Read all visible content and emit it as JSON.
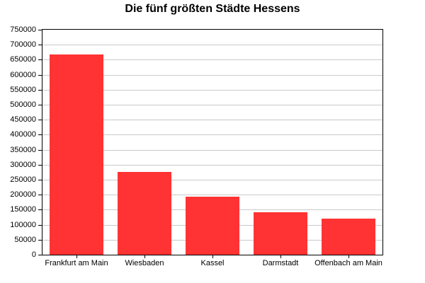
{
  "chart_data": {
    "type": "bar",
    "title": "Die fünf größten Städte Hessens",
    "categories": [
      "Frankfurt am Main",
      "Wiesbaden",
      "Kassel",
      "Darmstadt",
      "Offenbach am Main"
    ],
    "values": [
      668000,
      276000,
      193000,
      142000,
      120000
    ],
    "xlabel": "",
    "ylabel": "",
    "ylim": [
      0,
      750000
    ],
    "ytick_step": 50000,
    "ytick_labels": [
      "0",
      "50000",
      "100000",
      "150000",
      "200000",
      "250000",
      "300000",
      "350000",
      "400000",
      "450000",
      "500000",
      "550000",
      "600000",
      "650000",
      "700000",
      "750000"
    ],
    "grid": true,
    "legend": false,
    "bar_color": "#ff3333",
    "grid_color": "#c9c9c9",
    "axis_color": "#000000",
    "background_color": "#ffffff"
  }
}
